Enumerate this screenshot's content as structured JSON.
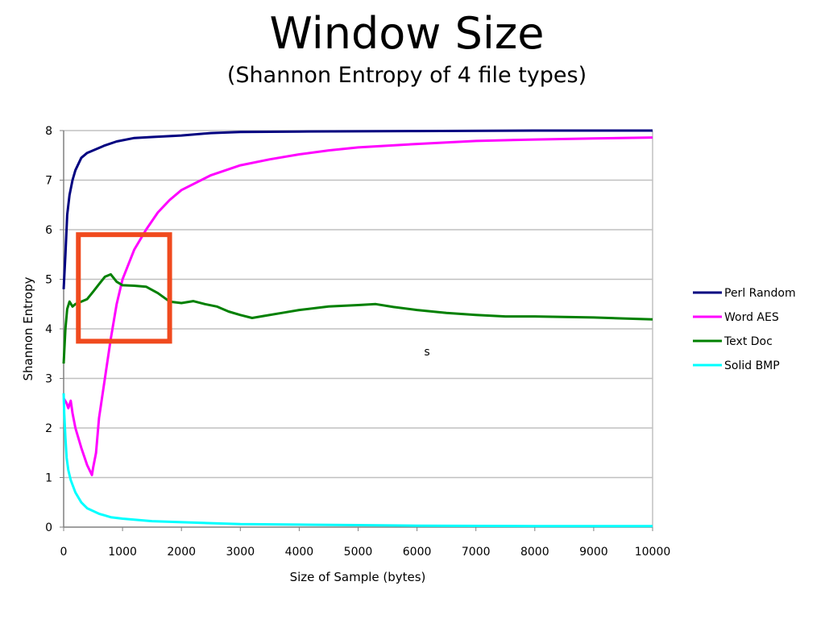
{
  "slide": {
    "title": "Window Size",
    "subtitle": "(Shannon Entropy of 4 file types)"
  },
  "chart_data": {
    "type": "line",
    "title": "",
    "xlabel": "Size of Sample (bytes)",
    "ylabel": "Shannon Entropy",
    "xlim": [
      0,
      10000
    ],
    "ylim": [
      0,
      8
    ],
    "x_ticks": [
      0,
      1000,
      2000,
      3000,
      4000,
      5000,
      6000,
      7000,
      8000,
      9000,
      10000
    ],
    "y_ticks": [
      0,
      1,
      2,
      3,
      4,
      5,
      6,
      7,
      8
    ],
    "grid": "horizontal",
    "legend_position": "right",
    "annotation_text": "s",
    "highlight_box": {
      "x_start": 250,
      "x_end": 1800,
      "y_start": 3.75,
      "y_end": 5.9,
      "color": "#f04a1e"
    },
    "series": [
      {
        "name": "Perl Random",
        "color": "#000080",
        "points": [
          [
            0,
            4.8
          ],
          [
            30,
            5.5
          ],
          [
            60,
            6.3
          ],
          [
            100,
            6.7
          ],
          [
            150,
            7.0
          ],
          [
            200,
            7.2
          ],
          [
            300,
            7.45
          ],
          [
            400,
            7.55
          ],
          [
            500,
            7.6
          ],
          [
            700,
            7.7
          ],
          [
            900,
            7.78
          ],
          [
            1200,
            7.85
          ],
          [
            1500,
            7.87
          ],
          [
            2000,
            7.9
          ],
          [
            2500,
            7.95
          ],
          [
            3000,
            7.97
          ],
          [
            4000,
            7.98
          ],
          [
            6000,
            7.99
          ],
          [
            8000,
            8.0
          ],
          [
            10000,
            8.0
          ]
        ]
      },
      {
        "name": "Word AES",
        "color": "#ff00ff",
        "points": [
          [
            0,
            2.6
          ],
          [
            50,
            2.5
          ],
          [
            80,
            2.4
          ],
          [
            120,
            2.55
          ],
          [
            150,
            2.3
          ],
          [
            200,
            2.0
          ],
          [
            300,
            1.6
          ],
          [
            400,
            1.25
          ],
          [
            480,
            1.05
          ],
          [
            500,
            1.2
          ],
          [
            550,
            1.5
          ],
          [
            600,
            2.2
          ],
          [
            700,
            3.0
          ],
          [
            800,
            3.8
          ],
          [
            900,
            4.5
          ],
          [
            1000,
            5.0
          ],
          [
            1200,
            5.6
          ],
          [
            1400,
            6.0
          ],
          [
            1600,
            6.35
          ],
          [
            1800,
            6.6
          ],
          [
            2000,
            6.8
          ],
          [
            2500,
            7.1
          ],
          [
            3000,
            7.3
          ],
          [
            3500,
            7.42
          ],
          [
            4000,
            7.52
          ],
          [
            4500,
            7.6
          ],
          [
            5000,
            7.66
          ],
          [
            6000,
            7.73
          ],
          [
            7000,
            7.79
          ],
          [
            8000,
            7.82
          ],
          [
            9000,
            7.84
          ],
          [
            10000,
            7.86
          ]
        ]
      },
      {
        "name": "Text Doc",
        "color": "#008000",
        "points": [
          [
            0,
            3.3
          ],
          [
            30,
            4.0
          ],
          [
            60,
            4.4
          ],
          [
            100,
            4.55
          ],
          [
            150,
            4.45
          ],
          [
            200,
            4.5
          ],
          [
            300,
            4.55
          ],
          [
            400,
            4.6
          ],
          [
            500,
            4.75
          ],
          [
            600,
            4.9
          ],
          [
            700,
            5.05
          ],
          [
            800,
            5.1
          ],
          [
            900,
            4.95
          ],
          [
            1000,
            4.88
          ],
          [
            1200,
            4.87
          ],
          [
            1400,
            4.85
          ],
          [
            1600,
            4.72
          ],
          [
            1800,
            4.55
          ],
          [
            2000,
            4.52
          ],
          [
            2200,
            4.56
          ],
          [
            2400,
            4.5
          ],
          [
            2600,
            4.45
          ],
          [
            2800,
            4.35
          ],
          [
            3000,
            4.28
          ],
          [
            3200,
            4.22
          ],
          [
            3400,
            4.26
          ],
          [
            3700,
            4.32
          ],
          [
            4000,
            4.38
          ],
          [
            4500,
            4.45
          ],
          [
            5000,
            4.48
          ],
          [
            5300,
            4.5
          ],
          [
            5600,
            4.44
          ],
          [
            6000,
            4.38
          ],
          [
            6500,
            4.32
          ],
          [
            7000,
            4.28
          ],
          [
            7500,
            4.25
          ],
          [
            8000,
            4.25
          ],
          [
            8500,
            4.24
          ],
          [
            9000,
            4.23
          ],
          [
            9500,
            4.21
          ],
          [
            10000,
            4.19
          ]
        ]
      },
      {
        "name": "Solid BMP",
        "color": "#00ffff",
        "points": [
          [
            0,
            2.7
          ],
          [
            10,
            2.3
          ],
          [
            30,
            1.8
          ],
          [
            50,
            1.4
          ],
          [
            80,
            1.15
          ],
          [
            120,
            0.95
          ],
          [
            200,
            0.7
          ],
          [
            300,
            0.5
          ],
          [
            400,
            0.38
          ],
          [
            600,
            0.27
          ],
          [
            800,
            0.2
          ],
          [
            1000,
            0.17
          ],
          [
            1500,
            0.12
          ],
          [
            2000,
            0.1
          ],
          [
            2500,
            0.08
          ],
          [
            3000,
            0.06
          ],
          [
            4000,
            0.05
          ],
          [
            5000,
            0.04
          ],
          [
            6000,
            0.03
          ],
          [
            8000,
            0.02
          ],
          [
            10000,
            0.02
          ]
        ]
      }
    ]
  }
}
